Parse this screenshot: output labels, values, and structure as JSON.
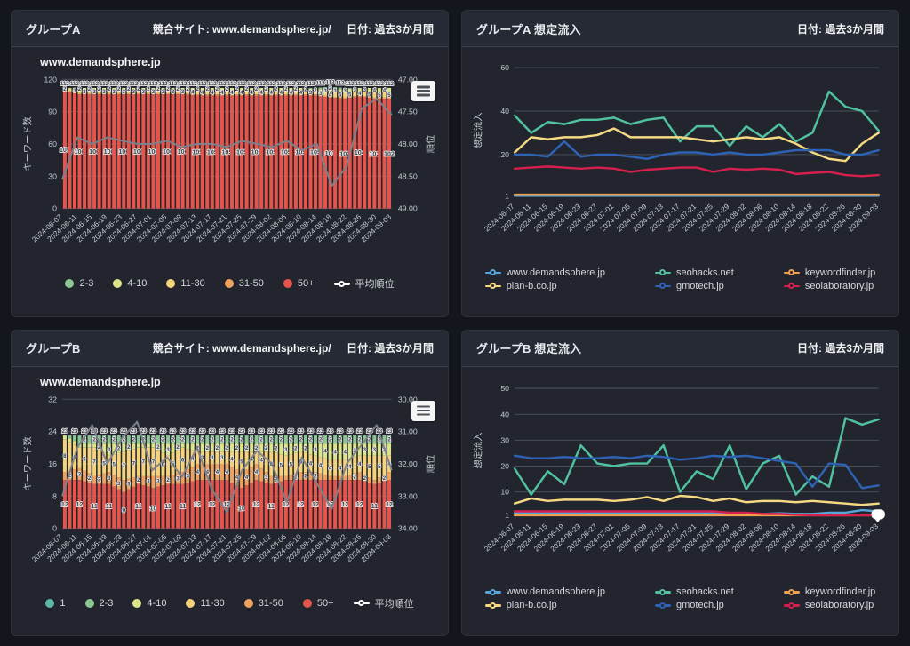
{
  "colors": {
    "page_bg": "#14161d",
    "panel_bg": "#22252e",
    "header_bg": "#262a34",
    "grid_line": "#4a4e58",
    "tick_text": "#c6cad0"
  },
  "panels": [
    {
      "title": "グループA",
      "meta1": "競合サイト: www.demandsphere.jp/",
      "meta2": "日付: 過去3か月間"
    },
    {
      "title": "グループA 想定流入",
      "meta1": "",
      "meta2": "日付: 過去3か月間"
    },
    {
      "title": "グループB",
      "meta1": "競合サイト: www.demandsphere.jp/",
      "meta2": "日付: 過去3か月間"
    },
    {
      "title": "グループB 想定流入",
      "meta1": "",
      "meta2": "日付: 過去3か月間"
    }
  ],
  "chart_data": [
    {
      "type": "stacked-bar+line",
      "title": "www.demandsphere.jp",
      "categories": [
        "2024-06-07",
        "2024-06-11",
        "2024-06-15",
        "2024-06-19",
        "2024-06-23",
        "2024-06-27",
        "2024-07-01",
        "2024-07-05",
        "2024-07-09",
        "2024-07-13",
        "2024-07-17",
        "2024-07-21",
        "2024-07-25",
        "2024-07-29",
        "2024-08-02",
        "2024-08-06",
        "2024-08-10",
        "2024-08-14",
        "2024-08-18",
        "2024-08-22",
        "2024-08-26",
        "2024-08-30",
        "2024-09-03"
      ],
      "n_bars": 67,
      "ylabel_left": "キーワード数",
      "ylim_left": [
        0,
        120
      ],
      "yticks_left": [
        0,
        30,
        60,
        90,
        120
      ],
      "ylabel_right": "順位",
      "ylim_right": [
        47,
        49
      ],
      "yticks_right": [
        "47.00",
        "47.50",
        "48.00",
        "48.50",
        "49.00"
      ],
      "right_axis_reversed": true,
      "series": [
        {
          "name": "2-3",
          "color": "#8cc793",
          "values": [
            0,
            0,
            0,
            0,
            0,
            0,
            0,
            0,
            0,
            0,
            0,
            0,
            0,
            0,
            0,
            0,
            0,
            1,
            2,
            1,
            0,
            0,
            0
          ]
        },
        {
          "name": "4-10",
          "color": "#dde58a",
          "values": [
            0,
            2,
            2,
            2,
            2,
            2,
            2,
            2,
            2,
            2,
            2,
            2,
            2,
            2,
            2,
            2,
            2,
            2,
            3,
            3,
            3,
            4,
            4
          ]
        },
        {
          "name": "11-30",
          "color": "#f5d27c",
          "values": [
            2,
            3,
            3,
            3,
            3,
            3,
            3,
            3,
            3,
            4,
            4,
            4,
            4,
            4,
            4,
            4,
            4,
            3,
            4,
            5,
            4,
            5,
            5
          ]
        },
        {
          "name": "31-50",
          "color": "#eda25f",
          "values": [
            1,
            1,
            1,
            1,
            1,
            1,
            1,
            1,
            1,
            1,
            1,
            1,
            1,
            1,
            1,
            1,
            1,
            1,
            1,
            1,
            1,
            1,
            1
          ]
        },
        {
          "name": "50+",
          "color": "#e4554c",
          "values": [
            109,
            106,
            106,
            106,
            106,
            106,
            106,
            106,
            106,
            105,
            105,
            105,
            105,
            105,
            105,
            105,
            105,
            105,
            103,
            102,
            104,
            102,
            102
          ]
        }
      ],
      "line": {
        "name": "平均順位",
        "color": "#7d828c",
        "legend_color": "#ffffff",
        "values": [
          48.55,
          47.9,
          48.0,
          47.9,
          47.95,
          48.0,
          48.0,
          47.95,
          48.05,
          48.0,
          48.0,
          48.05,
          47.95,
          48.0,
          48.05,
          47.95,
          48.1,
          48.0,
          48.65,
          48.35,
          47.45,
          47.3,
          47.55
        ]
      }
    },
    {
      "type": "line",
      "title": "",
      "categories": [
        "2024-06-07",
        "2024-06-11",
        "2024-06-15",
        "2024-06-19",
        "2024-06-23",
        "2024-06-27",
        "2024-07-01",
        "2024-07-05",
        "2024-07-09",
        "2024-07-13",
        "2024-07-17",
        "2024-07-21",
        "2024-07-25",
        "2024-07-29",
        "2024-08-02",
        "2024-08-06",
        "2024-08-10",
        "2024-08-14",
        "2024-08-18",
        "2024-08-22",
        "2024-08-26",
        "2024-08-30",
        "2024-09-03"
      ],
      "ylabel_left": "想定流入",
      "ylim_left": [
        0,
        62
      ],
      "yticks_left": [
        1,
        20,
        40,
        60
      ],
      "series": [
        {
          "name": "www.demandsphere.jp",
          "color": "#56a6da",
          "values": [
            1,
            1,
            1,
            1,
            1,
            1,
            1,
            1,
            1,
            1,
            1,
            1,
            1,
            1,
            1,
            1,
            1,
            1,
            1,
            1,
            1,
            1,
            1
          ]
        },
        {
          "name": "seohacks.net",
          "color": "#50c2a0",
          "values": [
            38,
            30,
            35,
            34,
            36,
            36,
            37,
            34,
            36,
            37,
            26,
            33,
            33,
            24,
            33,
            28,
            34,
            26,
            30,
            49,
            42,
            40,
            31
          ]
        },
        {
          "name": "keywordfinder.jp",
          "color": "#f09f4e",
          "values": [
            1.5,
            1.5,
            1.5,
            1.5,
            1.5,
            1.5,
            1.5,
            1.5,
            1.5,
            1.5,
            1.5,
            1.5,
            1.5,
            1.5,
            1.5,
            1.5,
            1.5,
            1.5,
            1.5,
            1.5,
            1.5,
            1.5,
            1.5
          ]
        },
        {
          "name": "plan-b.co.jp",
          "color": "#f5d983",
          "values": [
            21,
            28,
            27,
            28,
            28,
            29,
            32,
            28,
            28,
            28,
            28,
            27,
            26,
            27,
            28,
            27,
            28,
            25,
            21,
            18,
            17,
            25,
            30
          ]
        },
        {
          "name": "gmotech.jp",
          "color": "#2d62b5",
          "values": [
            20,
            20,
            19,
            26,
            19,
            20,
            20,
            19,
            18,
            20,
            21,
            21,
            20,
            21,
            20,
            20,
            21,
            22,
            22,
            22,
            20,
            20,
            22
          ]
        },
        {
          "name": "seolaboratory.jp",
          "color": "#d51f4e",
          "values": [
            13.5,
            14,
            14.5,
            14,
            13.5,
            14,
            13.5,
            12,
            13,
            13.5,
            14,
            14,
            12,
            13.5,
            13,
            13.5,
            13,
            11,
            11.5,
            12,
            10.5,
            10,
            10.5
          ]
        }
      ],
      "legend_order": [
        0,
        1,
        2,
        3,
        4,
        5
      ]
    },
    {
      "type": "stacked-bar+line",
      "title": "www.demandsphere.jp",
      "categories": [
        "2024-06-07",
        "2024-06-11",
        "2024-06-15",
        "2024-06-19",
        "2024-06-23",
        "2024-06-27",
        "2024-07-01",
        "2024-07-05",
        "2024-07-09",
        "2024-07-13",
        "2024-07-17",
        "2024-07-21",
        "2024-07-25",
        "2024-07-29",
        "2024-08-02",
        "2024-08-06",
        "2024-08-10",
        "2024-08-14",
        "2024-08-18",
        "2024-08-22",
        "2024-08-26",
        "2024-08-30",
        "2024-09-03"
      ],
      "n_bars": 67,
      "ylabel_left": "キーワード数",
      "ylim_left": [
        0,
        32
      ],
      "yticks_left": [
        0,
        8,
        16,
        24,
        32
      ],
      "ylabel_right": "順位",
      "ylim_right": [
        30,
        34
      ],
      "yticks_right": [
        "30.00",
        "31.00",
        "32.00",
        "33.00",
        "34.00"
      ],
      "right_axis_reversed": true,
      "series": [
        {
          "name": "1",
          "color": "#5cb8a2",
          "values": [
            0,
            0,
            0,
            0,
            0,
            0,
            0,
            0,
            0,
            0,
            0,
            0,
            0,
            0,
            0,
            0,
            0,
            0,
            0,
            0,
            0,
            0,
            0
          ]
        },
        {
          "name": "2-3",
          "color": "#8cc793",
          "values": [
            0,
            2,
            2,
            2,
            2,
            2,
            2,
            2,
            2,
            2,
            2,
            2,
            2,
            2,
            2,
            2,
            2,
            2,
            2,
            2,
            2,
            2,
            2
          ]
        },
        {
          "name": "4-10",
          "color": "#dde58a",
          "values": [
            1,
            1,
            1,
            3,
            2,
            1,
            1,
            3,
            1,
            2,
            2,
            2,
            2,
            2,
            2,
            3,
            2,
            3,
            4,
            4,
            3,
            3,
            3
          ]
        },
        {
          "name": "11-30",
          "color": "#f5d27c",
          "values": [
            8,
            5,
            7,
            4,
            7,
            7,
            7,
            5,
            6,
            3,
            3,
            3,
            5,
            3,
            6,
            5,
            5,
            4,
            4,
            4,
            4,
            6,
            4
          ]
        },
        {
          "name": "31-50",
          "color": "#eda25f",
          "values": [
            2,
            3,
            2,
            3,
            3,
            2,
            3,
            2,
            3,
            4,
            4,
            4,
            4,
            4,
            2,
            1,
            2,
            2,
            1,
            1,
            2,
            1,
            2
          ]
        },
        {
          "name": "50+",
          "color": "#e4554c",
          "values": [
            12,
            12,
            11,
            11,
            9,
            11,
            10,
            11,
            11,
            12,
            12,
            12,
            10,
            12,
            11,
            12,
            12,
            12,
            12,
            12,
            12,
            11,
            12
          ]
        }
      ],
      "line": {
        "name": "平均順位",
        "color": "#7d828c",
        "legend_color": "#ffffff",
        "values": [
          33.0,
          31.5,
          30.8,
          32.0,
          31.2,
          30.7,
          32.2,
          31.8,
          32.4,
          31.5,
          32.8,
          33.5,
          32.2,
          31.6,
          32.0,
          33.2,
          31.8,
          32.6,
          33.4,
          32.0,
          31.4,
          30.8,
          32.2
        ]
      }
    },
    {
      "type": "line",
      "title": "",
      "categories": [
        "2024-06-07",
        "2024-06-11",
        "2024-06-15",
        "2024-06-19",
        "2024-06-23",
        "2024-06-27",
        "2024-07-01",
        "2024-07-05",
        "2024-07-09",
        "2024-07-13",
        "2024-07-17",
        "2024-07-21",
        "2024-07-25",
        "2024-07-29",
        "2024-08-02",
        "2024-08-06",
        "2024-08-10",
        "2024-08-14",
        "2024-08-18",
        "2024-08-22",
        "2024-08-26",
        "2024-08-30",
        "2024-09-03"
      ],
      "ylabel_left": "想定流入",
      "ylim_left": [
        0,
        52
      ],
      "yticks_left": [
        1,
        10,
        20,
        30,
        40,
        50
      ],
      "series": [
        {
          "name": "www.demandsphere.jp",
          "color": "#56a6da",
          "values": [
            2,
            1.8,
            2,
            2,
            2,
            1.8,
            1.8,
            1.8,
            1.8,
            1.8,
            1.8,
            1.8,
            2,
            1.8,
            1.5,
            1.5,
            1.8,
            1.5,
            1.5,
            2,
            2,
            3,
            2.5
          ]
        },
        {
          "name": "seohacks.net",
          "color": "#50c2a0",
          "values": [
            19,
            9,
            18,
            13,
            28,
            21,
            20,
            21,
            21,
            28,
            10,
            18,
            15,
            28,
            11,
            21,
            24,
            9,
            16,
            12,
            38.5,
            36,
            38
          ]
        },
        {
          "name": "keywordfinder.jp",
          "color": "#f09f4e",
          "values": [
            1,
            1,
            1,
            1,
            1,
            1,
            1,
            1,
            1,
            1,
            1,
            1,
            1,
            1,
            1,
            1,
            1,
            1,
            1,
            1,
            1,
            1,
            1
          ]
        },
        {
          "name": "plan-b.co.jp",
          "color": "#f5d983",
          "values": [
            5.5,
            7.5,
            6.5,
            7,
            7,
            7,
            6.5,
            7,
            8,
            6.5,
            8.5,
            8,
            6.5,
            7.5,
            6,
            6.5,
            6.5,
            6,
            6.5,
            6,
            5.5,
            5,
            5.5
          ]
        },
        {
          "name": "gmotech.jp",
          "color": "#2d62b5",
          "values": [
            24,
            23,
            23,
            23.5,
            23,
            23,
            23.5,
            23,
            24,
            23.5,
            22.5,
            23,
            24,
            23.5,
            24,
            23,
            22,
            21,
            12,
            21,
            20.5,
            11.5,
            12.5
          ]
        },
        {
          "name": "seolaboratory.jp",
          "color": "#d51f4e",
          "values": [
            2.5,
            2.5,
            2.5,
            2.5,
            2.5,
            2.5,
            2.5,
            2.5,
            2.5,
            2.5,
            2.5,
            2.5,
            2.5,
            2,
            2,
            1.5,
            1.5,
            1.2,
            1,
            1,
            1,
            1,
            1
          ]
        }
      ],
      "legend_order": [
        0,
        1,
        2,
        3,
        4,
        5
      ],
      "end_marker": {
        "value": 1.5,
        "color": "#ffffff"
      }
    }
  ]
}
